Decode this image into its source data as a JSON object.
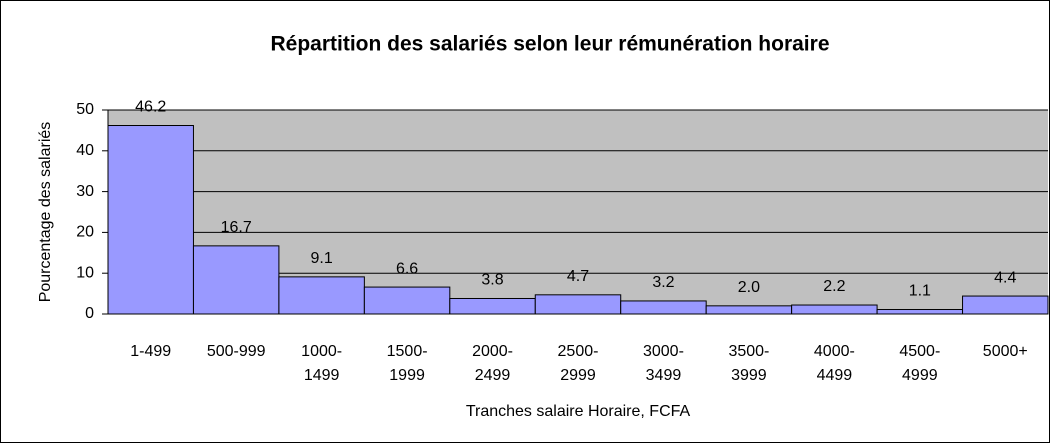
{
  "chart_data": {
    "type": "bar",
    "title": "Répartition des salariés selon leur rémunération horaire",
    "x_label": "Tranches salaire Horaire, FCFA",
    "y_label": "Pourcentage des salariés",
    "categories": [
      "1-499",
      "500-999",
      "1000-1499",
      "1500-1999",
      "2000-2499",
      "2500-2999",
      "3000-3499",
      "3500-3999",
      "4000-4499",
      "4500-4999",
      "5000+"
    ],
    "values": [
      46.2,
      16.7,
      9.1,
      6.6,
      3.8,
      4.7,
      3.2,
      2.0,
      2.2,
      1.1,
      4.4
    ],
    "value_labels": [
      "46.2",
      "16.7",
      "9.1",
      "6.6",
      "3.8",
      "4.7",
      "3.2",
      "2.0",
      "2.2",
      "1.1",
      "4.4"
    ],
    "color": "#9999ff",
    "ylim": [
      0,
      50
    ],
    "yticks": [
      0,
      10,
      20,
      30,
      40,
      50
    ],
    "grid": true
  }
}
